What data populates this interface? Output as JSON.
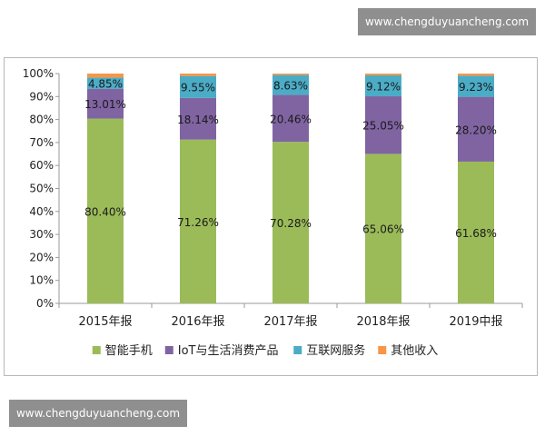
{
  "watermark_top": "www.chengduyuancheng.com",
  "watermark_bottom": "www.chengduyuancheng.com",
  "chart_data": {
    "type": "bar",
    "stacked": true,
    "percent_stacked": true,
    "categories": [
      "2015年报",
      "2016年报",
      "2017年报",
      "2018年报",
      "2019中报"
    ],
    "series": [
      {
        "name": "智能手机",
        "color": "#9bbb59",
        "values": [
          80.4,
          71.26,
          70.28,
          65.06,
          61.68
        ],
        "labels": [
          "80.40%",
          "71.26%",
          "70.28%",
          "65.06%",
          "61.68%"
        ]
      },
      {
        "name": "IoT与生活消费产品",
        "color": "#8064a2",
        "values": [
          13.01,
          18.14,
          20.46,
          25.05,
          28.2
        ],
        "labels": [
          "13.01%",
          "18.14%",
          "20.46%",
          "25.05%",
          "28.20%"
        ]
      },
      {
        "name": "互联网服务",
        "color": "#4bacc6",
        "values": [
          4.85,
          9.55,
          8.63,
          9.12,
          9.23
        ],
        "labels": [
          "4.85%",
          "9.55%",
          "8.63%",
          "9.12%",
          "9.23%"
        ]
      },
      {
        "name": "其他收入",
        "color": "#f79646",
        "values": [
          1.74,
          1.05,
          0.63,
          0.77,
          0.89
        ],
        "labels": []
      }
    ],
    "y_ticks": [
      "0%",
      "10%",
      "20%",
      "30%",
      "40%",
      "50%",
      "60%",
      "70%",
      "80%",
      "90%",
      "100%"
    ],
    "ylim": [
      0,
      100
    ],
    "grid": false,
    "legend_position": "bottom"
  }
}
